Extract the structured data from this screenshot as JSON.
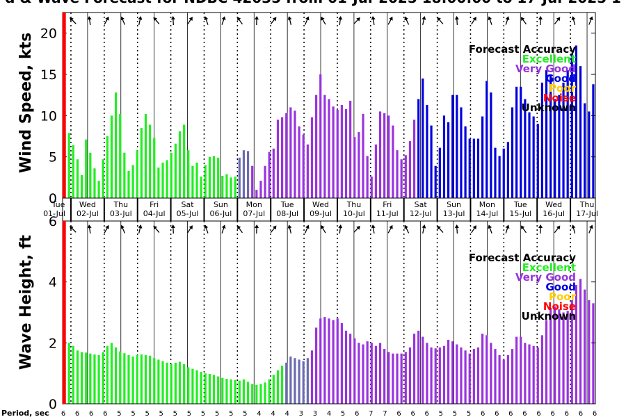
{
  "title": "d & Wave Forecast for NDBC 42035 from 01-Jul-2025 18:00:00 to 17-Jul-2025 1",
  "colors": {
    "excellent": "#22ee22",
    "very_good": "#9933dd",
    "good": "#0000dd",
    "poor": "#ffcc00",
    "noise": "#ff0000",
    "unknown": "#000000",
    "transition": "#6a6ab0"
  },
  "days": [
    {
      "dow": "Tue",
      "date": "01-Jul"
    },
    {
      "dow": "Wed",
      "date": "02-Jul"
    },
    {
      "dow": "Thu",
      "date": "03-Jul"
    },
    {
      "dow": "Fri",
      "date": "04-Jul"
    },
    {
      "dow": "Sat",
      "date": "05-Jul"
    },
    {
      "dow": "Sun",
      "date": "06-Jul"
    },
    {
      "dow": "Mon",
      "date": "07-Jul"
    },
    {
      "dow": "Tue",
      "date": "08-Jul"
    },
    {
      "dow": "Wed",
      "date": "09-Jul"
    },
    {
      "dow": "Thu",
      "date": "10-Jul"
    },
    {
      "dow": "Fri",
      "date": "11-Jul"
    },
    {
      "dow": "Sat",
      "date": "12-Jul"
    },
    {
      "dow": "Sun",
      "date": "13-Jul"
    },
    {
      "dow": "Mon",
      "date": "14-Jul"
    },
    {
      "dow": "Tue",
      "date": "15-Jul"
    },
    {
      "dow": "Wed",
      "date": "16-Jul"
    },
    {
      "dow": "Thu",
      "date": "17-Jul"
    }
  ],
  "legend": {
    "title": "Forecast Accuracy",
    "items": [
      {
        "label": "Excellent",
        "color_key": "excellent"
      },
      {
        "label": "Very Good",
        "color_key": "very_good"
      },
      {
        "label": "Good",
        "color_key": "good"
      },
      {
        "label": "Poor",
        "color_key": "poor"
      },
      {
        "label": "Noise",
        "color_key": "noise"
      },
      {
        "label": "Unknown",
        "color_key": "unknown"
      }
    ]
  },
  "period_label": "Period, sec",
  "periods": [
    "6",
    "6",
    "6",
    "6",
    "5",
    "5",
    "5",
    "5",
    "5",
    "5",
    "5",
    "5",
    "5",
    "5",
    "4",
    "4",
    "4",
    "3",
    "3",
    "4",
    "5",
    "6",
    "7",
    "7",
    "6",
    "6",
    "6",
    "5",
    "5",
    "5",
    "6",
    "6",
    "6",
    "6",
    "6",
    "6",
    "6",
    "6",
    "6"
  ],
  "chart_data": [
    {
      "type": "bar",
      "name": "wind",
      "ylabel": "Wind Speed, kts",
      "ylim": [
        0,
        22.5
      ],
      "yticks": [
        0,
        5,
        10,
        15,
        20
      ],
      "xlim_days": [
        0.75,
        16.75
      ],
      "values": [
        7.8,
        7.9,
        6.4,
        4.7,
        2.8,
        7.1,
        5.5,
        3.6,
        2.1,
        4.7,
        7.5,
        10.0,
        12.8,
        10.2,
        5.5,
        3.3,
        4.0,
        5.8,
        8.5,
        10.2,
        8.9,
        7.3,
        3.7,
        4.3,
        4.6,
        5.5,
        6.6,
        8.1,
        8.9,
        5.8,
        3.9,
        4.3,
        2.6,
        4.0,
        5.0,
        5.1,
        4.9,
        2.7,
        2.9,
        2.5,
        2.6,
        4.9,
        5.8,
        5.7,
        3.9,
        1.0,
        2.1,
        3.9,
        5.6,
        6.0,
        9.5,
        9.8,
        10.3,
        11.0,
        10.6,
        8.7,
        7.7,
        6.5,
        9.8,
        12.5,
        15.0,
        12.5,
        12.0,
        11.1,
        10.7,
        11.3,
        10.8,
        11.8,
        7.4,
        8.0,
        10.2,
        5.1,
        2.6,
        6.5,
        10.5,
        10.3,
        10.0,
        8.8,
        5.8,
        4.7,
        5.2,
        6.9,
        9.5,
        12.0,
        14.5,
        11.3,
        8.8,
        3.9,
        6.1,
        10.0,
        9.2,
        12.5,
        12.5,
        11.0,
        8.7,
        7.2,
        7.2,
        7.2,
        9.9,
        14.2,
        12.8,
        6.1,
        5.1,
        6.0,
        6.8,
        11.0,
        13.5,
        13.5,
        12.0,
        10.4,
        9.9,
        9.0,
        14.0,
        15.5,
        15.0,
        12.0,
        12.5,
        14.0,
        15.5,
        17.5,
        18.5,
        16.0,
        11.5,
        10.5,
        13.8
      ],
      "classes": [
        "E",
        "E",
        "E",
        "E",
        "E",
        "E",
        "E",
        "E",
        "E",
        "E",
        "E",
        "E",
        "E",
        "E",
        "E",
        "E",
        "E",
        "E",
        "E",
        "E",
        "E",
        "E",
        "E",
        "E",
        "E",
        "E",
        "E",
        "E",
        "E",
        "E",
        "E",
        "E",
        "E",
        "E",
        "E",
        "E",
        "E",
        "E",
        "E",
        "E",
        "E",
        "T",
        "T",
        "T",
        "V",
        "V",
        "V",
        "V",
        "V",
        "V",
        "V",
        "V",
        "V",
        "V",
        "V",
        "V",
        "V",
        "V",
        "V",
        "V",
        "V",
        "V",
        "V",
        "V",
        "V",
        "V",
        "V",
        "V",
        "V",
        "V",
        "V",
        "V",
        "V",
        "V",
        "V",
        "V",
        "V",
        "V",
        "V",
        "V",
        "V",
        "V",
        "V",
        "G",
        "G",
        "G",
        "G",
        "G",
        "G",
        "G",
        "G",
        "G",
        "G",
        "G",
        "G",
        "G",
        "G",
        "G",
        "G",
        "G",
        "G",
        "G",
        "G",
        "G",
        "G",
        "G",
        "G",
        "G",
        "G",
        "G",
        "G",
        "G",
        "G",
        "G",
        "G",
        "G",
        "G",
        "G",
        "G",
        "G",
        "G",
        "G",
        "G",
        "G",
        "G"
      ]
    },
    {
      "type": "bar",
      "name": "wave",
      "ylabel": "Wave Height, ft",
      "ylim": [
        0,
        6
      ],
      "yticks": [
        0,
        2,
        4,
        6
      ],
      "xlim_days": [
        0.75,
        16.75
      ],
      "values": [
        2.1,
        2.0,
        1.9,
        1.75,
        1.7,
        1.68,
        1.65,
        1.62,
        1.6,
        1.7,
        1.9,
        2.0,
        1.85,
        1.72,
        1.66,
        1.6,
        1.55,
        1.6,
        1.62,
        1.6,
        1.58,
        1.5,
        1.45,
        1.4,
        1.35,
        1.3,
        1.35,
        1.38,
        1.3,
        1.2,
        1.15,
        1.1,
        1.05,
        1.0,
        0.98,
        0.95,
        0.9,
        0.85,
        0.82,
        0.8,
        0.78,
        0.76,
        0.8,
        0.72,
        0.65,
        0.62,
        0.65,
        0.7,
        0.8,
        0.95,
        1.1,
        1.25,
        1.35,
        1.55,
        1.5,
        1.45,
        1.4,
        1.5,
        1.75,
        2.5,
        2.8,
        2.85,
        2.8,
        2.75,
        2.8,
        2.65,
        2.4,
        2.3,
        2.15,
        2.0,
        1.95,
        2.05,
        2.0,
        1.9,
        2.0,
        1.8,
        1.7,
        1.65,
        1.65,
        1.65,
        1.7,
        1.85,
        2.3,
        2.4,
        2.2,
        2.0,
        1.85,
        1.82,
        1.85,
        1.9,
        2.1,
        2.05,
        1.95,
        1.85,
        1.75,
        1.65,
        1.8,
        1.85,
        2.3,
        2.25,
        2.0,
        1.8,
        1.6,
        1.45,
        1.6,
        1.8,
        2.2,
        2.2,
        2.0,
        1.95,
        1.9,
        1.85,
        2.25,
        2.75,
        3.15,
        3.2,
        3.1,
        3.0,
        3.05,
        3.4,
        3.9,
        4.1,
        3.75,
        3.4,
        3.3
      ],
      "classes": [
        "E",
        "E",
        "E",
        "E",
        "E",
        "E",
        "E",
        "E",
        "E",
        "E",
        "E",
        "E",
        "E",
        "E",
        "E",
        "E",
        "E",
        "E",
        "E",
        "E",
        "E",
        "E",
        "E",
        "E",
        "E",
        "E",
        "E",
        "E",
        "E",
        "E",
        "E",
        "E",
        "E",
        "E",
        "E",
        "E",
        "E",
        "E",
        "E",
        "E",
        "E",
        "E",
        "E",
        "E",
        "E",
        "E",
        "E",
        "E",
        "E",
        "E",
        "E",
        "E",
        "T",
        "T",
        "T",
        "T",
        "T",
        "T",
        "V",
        "V",
        "V",
        "V",
        "V",
        "V",
        "V",
        "V",
        "V",
        "V",
        "V",
        "V",
        "V",
        "V",
        "V",
        "V",
        "V",
        "V",
        "V",
        "V",
        "V",
        "V",
        "V",
        "V",
        "V",
        "V",
        "V",
        "V",
        "V",
        "V",
        "V",
        "V",
        "V",
        "V",
        "V",
        "V",
        "V",
        "V",
        "V",
        "V",
        "V",
        "V",
        "V",
        "V",
        "V",
        "V",
        "V",
        "V",
        "V",
        "V",
        "V",
        "V",
        "V",
        "V",
        "V",
        "V",
        "V",
        "V",
        "V",
        "V",
        "V",
        "V",
        "V",
        "V",
        "V",
        "V",
        "V",
        "V",
        "V"
      ]
    }
  ]
}
